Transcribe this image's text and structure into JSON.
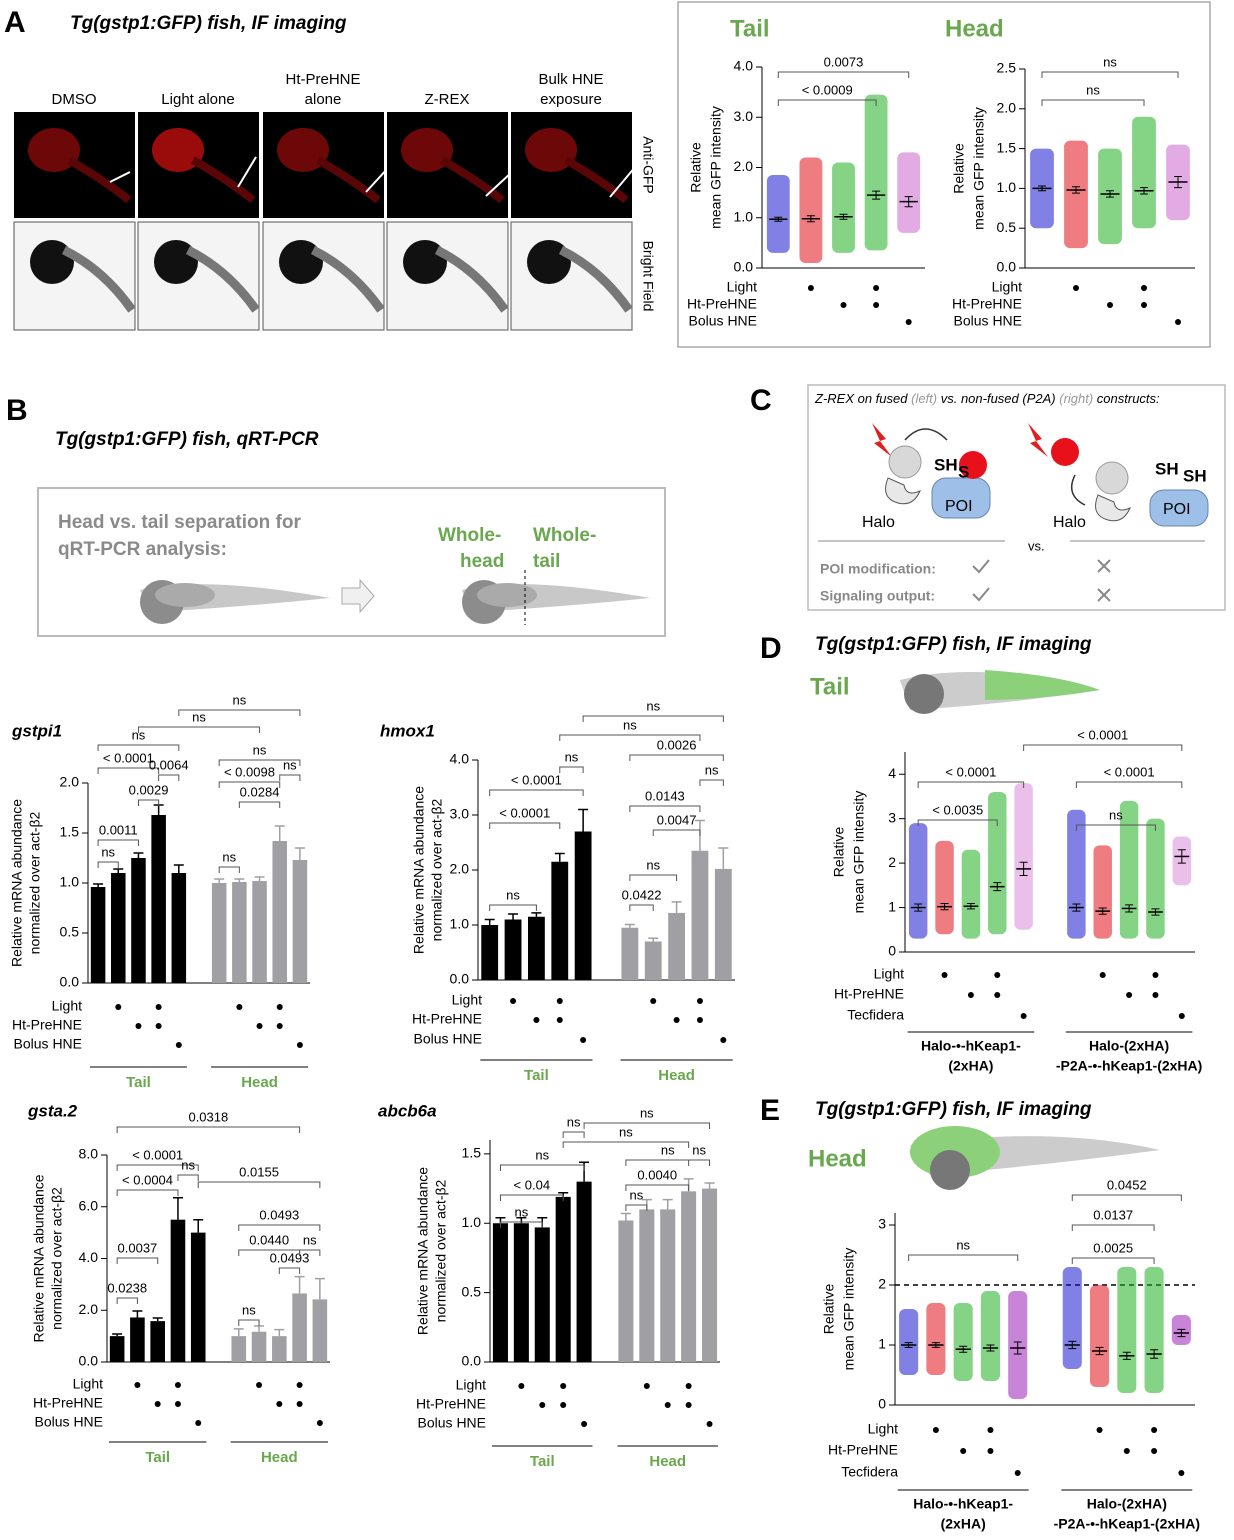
{
  "panels": {
    "A": {
      "label": "A",
      "title": "Tg(gstp1:GFP) fish, IF imaging",
      "columns": [
        [
          "DMSO"
        ],
        [
          "Light alone"
        ],
        [
          "Ht-PreHNE",
          "alone"
        ],
        [
          "Z-REX"
        ],
        [
          "Bulk HNE",
          "exposure"
        ]
      ],
      "rows": [
        "Anti-GFP",
        "Bright Field"
      ]
    },
    "B": {
      "label": "B",
      "title": "Tg(gstp1:GFP) fish, qRT-PCR",
      "heading": [
        "Head vs. tail separation for",
        "qRT-PCR analysis:"
      ],
      "head": [
        "Whole-",
        "head"
      ],
      "tail": [
        "Whole-",
        "tail"
      ]
    },
    "C": {
      "label": "C",
      "caption": [
        "Z-REX on fused ",
        "(left)",
        " vs. non-fused (P2A) ",
        "(right)",
        " constructs:"
      ],
      "sh": "SH",
      "s": "S",
      "halo": "Halo",
      "poi": "POI",
      "vs": "vs.",
      "sh2": [
        "SH",
        "SH"
      ],
      "rows": [
        "POI modification:",
        "Signaling output:"
      ]
    },
    "D": {
      "label": "D",
      "title": "Tg(gstp1:GFP) fish, IF imaging",
      "region": "Tail"
    },
    "E": {
      "label": "E",
      "title": "Tg(gstp1:GFP) fish, IF imaging",
      "region": "Head"
    }
  },
  "chart_data": [
    {
      "type": "dotplot",
      "title": "Tail",
      "ylabel": [
        "Relative",
        "mean GFP intensity"
      ],
      "ylim": [
        0,
        4
      ],
      "yticks": [
        {
          "value": 0,
          "label": "0.0"
        },
        {
          "value": 1,
          "label": "1.0"
        },
        {
          "value": 2,
          "label": "2.0"
        },
        {
          "value": 3,
          "label": "3.0"
        },
        {
          "value": 4,
          "label": "4.0"
        }
      ],
      "values": [
        0.97,
        0.98,
        1.02,
        1.45,
        1.32
      ],
      "errors": [
        0.04,
        0.06,
        0.05,
        0.08,
        0.1
      ],
      "ranges": [
        [
          0.3,
          1.85
        ],
        [
          0.1,
          2.2
        ],
        [
          0.3,
          2.1
        ],
        [
          0.35,
          3.45
        ],
        [
          0.7,
          2.3
        ]
      ],
      "colors": [
        "#1a1ad0",
        "#e0101a",
        "#21b021",
        "#21b021",
        "#cc66cc"
      ],
      "conditions": [
        {
          "name": "Light",
          "marks": [
            false,
            true,
            false,
            true,
            false
          ]
        },
        {
          "name": "Ht-PreHNE",
          "marks": [
            false,
            false,
            true,
            true,
            false
          ]
        },
        {
          "name": "Bolus HNE",
          "marks": [
            false,
            false,
            false,
            false,
            true
          ]
        }
      ],
      "annotations": [
        "< 0.0009",
        "0.0073"
      ]
    },
    {
      "type": "dotplot",
      "title": "Head",
      "ylabel": [
        "Relative",
        "mean GFP intensity"
      ],
      "ylim": [
        0,
        2.5
      ],
      "yticks": [
        {
          "value": 0,
          "label": "0.0"
        },
        {
          "value": 0.5,
          "label": "0.5"
        },
        {
          "value": 1,
          "label": "1.0"
        },
        {
          "value": 1.5,
          "label": "1.5"
        },
        {
          "value": 2,
          "label": "2.0"
        },
        {
          "value": 2.5,
          "label": "2.5"
        }
      ],
      "values": [
        1.0,
        0.98,
        0.93,
        0.97,
        1.08
      ],
      "errors": [
        0.03,
        0.04,
        0.04,
        0.04,
        0.07
      ],
      "ranges": [
        [
          0.5,
          1.5
        ],
        [
          0.25,
          1.6
        ],
        [
          0.3,
          1.5
        ],
        [
          0.5,
          1.9
        ],
        [
          0.6,
          1.55
        ]
      ],
      "colors": [
        "#1a1ad0",
        "#e0101a",
        "#21b021",
        "#21b021",
        "#cc66cc"
      ],
      "conditions": [
        {
          "name": "Light",
          "marks": [
            false,
            true,
            false,
            true,
            false
          ]
        },
        {
          "name": "Ht-PreHNE",
          "marks": [
            false,
            false,
            true,
            true,
            false
          ]
        },
        {
          "name": "Bolus HNE",
          "marks": [
            false,
            false,
            false,
            false,
            true
          ]
        }
      ],
      "annotations": [
        "ns",
        "ns"
      ]
    },
    {
      "type": "bar",
      "title": "gstpi1",
      "ylabel": [
        "Relative mRNA abundance",
        "normalized over act-β2"
      ],
      "ylim": [
        0,
        2
      ],
      "yticks": [
        {
          "value": 0,
          "label": "0.0"
        },
        {
          "value": 0.5,
          "label": "0.5"
        },
        {
          "value": 1,
          "label": "1.0"
        },
        {
          "value": 1.5,
          "label": "1.5"
        },
        {
          "value": 2,
          "label": "2.0"
        }
      ],
      "values": [
        0.96,
        1.1,
        1.25,
        1.68,
        1.1,
        1.0,
        1.01,
        1.02,
        1.42,
        1.23
      ],
      "errors": [
        0.03,
        0.04,
        0.05,
        0.1,
        0.08,
        0.04,
        0.03,
        0.04,
        0.15,
        0.12
      ],
      "colors": [
        "#000000",
        "#000000",
        "#000000",
        "#000000",
        "#000000",
        "#a0a0a4",
        "#a0a0a4",
        "#a0a0a4",
        "#a0a0a4",
        "#a0a0a4"
      ],
      "conditions": [
        {
          "name": "Light",
          "marks": [
            false,
            true,
            false,
            true,
            false,
            false,
            true,
            false,
            true,
            false
          ]
        },
        {
          "name": "Ht-PreHNE",
          "marks": [
            false,
            false,
            true,
            true,
            false,
            false,
            false,
            true,
            true,
            false
          ]
        },
        {
          "name": "Bolus HNE",
          "marks": [
            false,
            false,
            false,
            false,
            true,
            false,
            false,
            false,
            false,
            true
          ]
        }
      ],
      "groups": [
        {
          "label": [
            "Tail"
          ]
        },
        {
          "label": [
            "Head"
          ]
        }
      ],
      "annotations": [
        "ns",
        "0.0011",
        "0.0029",
        "< 0.0001",
        "0.0064",
        "ns",
        "ns",
        "ns",
        "ns",
        "< 0.0098",
        "0.0284",
        "ns",
        "ns"
      ]
    },
    {
      "type": "bar",
      "title": "hmox1",
      "ylabel": [
        "Relative mRNA abundance",
        "normalized over act-β2"
      ],
      "ylim": [
        0,
        4
      ],
      "yticks": [
        {
          "value": 0,
          "label": "0.0"
        },
        {
          "value": 1,
          "label": "1.0"
        },
        {
          "value": 2,
          "label": "2.0"
        },
        {
          "value": 3,
          "label": "3.0"
        },
        {
          "value": 4,
          "label": "4.0"
        }
      ],
      "values": [
        1.0,
        1.1,
        1.15,
        2.15,
        2.7,
        0.95,
        0.7,
        1.22,
        2.35,
        2.02
      ],
      "errors": [
        0.1,
        0.1,
        0.07,
        0.15,
        0.4,
        0.06,
        0.06,
        0.2,
        0.55,
        0.38
      ],
      "colors": [
        "#000000",
        "#000000",
        "#000000",
        "#000000",
        "#000000",
        "#a0a0a4",
        "#a0a0a4",
        "#a0a0a4",
        "#a0a0a4",
        "#a0a0a4"
      ],
      "conditions": [
        {
          "name": "Light",
          "marks": [
            false,
            true,
            false,
            true,
            false,
            false,
            true,
            false,
            true,
            false
          ]
        },
        {
          "name": "Ht-PreHNE",
          "marks": [
            false,
            false,
            true,
            true,
            false,
            false,
            false,
            true,
            true,
            false
          ]
        },
        {
          "name": "Bolus HNE",
          "marks": [
            false,
            false,
            false,
            false,
            true,
            false,
            false,
            false,
            false,
            true
          ]
        }
      ],
      "groups": [
        {
          "label": [
            "Tail"
          ]
        },
        {
          "label": [
            "Head"
          ]
        }
      ],
      "annotations": [
        "ns",
        "< 0.0001",
        "< 0.0001",
        "ns",
        "0.0422",
        "ns",
        "0.0047",
        "0.0143",
        "ns",
        "0.0026",
        "ns",
        "ns"
      ]
    },
    {
      "type": "bar",
      "title": "gsta.2",
      "ylabel": [
        "Relative mRNA abundance",
        "normalized over act-β2"
      ],
      "ylim": [
        0,
        8
      ],
      "yticks": [
        {
          "value": 0,
          "label": "0.0"
        },
        {
          "value": 2,
          "label": "2.0"
        },
        {
          "value": 4,
          "label": "4.0"
        },
        {
          "value": 6,
          "label": "6.0"
        },
        {
          "value": 8,
          "label": "8.0"
        }
      ],
      "values": [
        1.0,
        1.72,
        1.58,
        5.5,
        5.0,
        1.0,
        1.17,
        1.0,
        2.65,
        2.42
      ],
      "errors": [
        0.08,
        0.25,
        0.12,
        0.85,
        0.5,
        0.28,
        0.22,
        0.25,
        0.65,
        0.8
      ],
      "colors": [
        "#000000",
        "#000000",
        "#000000",
        "#000000",
        "#000000",
        "#a0a0a4",
        "#a0a0a4",
        "#a0a0a4",
        "#a0a0a4",
        "#a0a0a4"
      ],
      "conditions": [
        {
          "name": "Light",
          "marks": [
            false,
            true,
            false,
            true,
            false,
            false,
            true,
            false,
            true,
            false
          ]
        },
        {
          "name": "Ht-PreHNE",
          "marks": [
            false,
            false,
            true,
            true,
            false,
            false,
            false,
            true,
            true,
            false
          ]
        },
        {
          "name": "Bolus HNE",
          "marks": [
            false,
            false,
            false,
            false,
            true,
            false,
            false,
            false,
            false,
            true
          ]
        }
      ],
      "groups": [
        {
          "label": [
            "Tail"
          ]
        },
        {
          "label": [
            "Head"
          ]
        }
      ],
      "annotations": [
        "0.0238",
        "0.0037",
        "< 0.0004",
        "< 0.0001",
        "ns",
        "0.0155",
        "0.0318",
        "ns",
        "0.0493",
        "0.0440",
        "ns",
        "0.0493"
      ]
    },
    {
      "type": "bar",
      "title": "abcb6a",
      "ylabel": [
        "Relative mRNA abundance",
        "normalized over act-β2"
      ],
      "ylim": [
        0,
        1.6
      ],
      "yticks": [
        {
          "value": 0,
          "label": "0.0"
        },
        {
          "value": 0.5,
          "label": "0.5"
        },
        {
          "value": 1,
          "label": "1.0"
        },
        {
          "value": 1.5,
          "label": "1.5"
        }
      ],
      "values": [
        1.0,
        1.0,
        0.97,
        1.19,
        1.3,
        1.02,
        1.1,
        1.1,
        1.23,
        1.25
      ],
      "errors": [
        0.04,
        0.04,
        0.07,
        0.03,
        0.14,
        0.05,
        0.07,
        0.07,
        0.09,
        0.04
      ],
      "colors": [
        "#000000",
        "#000000",
        "#000000",
        "#000000",
        "#000000",
        "#a0a0a4",
        "#a0a0a4",
        "#a0a0a4",
        "#a0a0a4",
        "#a0a0a4"
      ],
      "conditions": [
        {
          "name": "Light",
          "marks": [
            false,
            true,
            false,
            true,
            false,
            false,
            true,
            false,
            true,
            false
          ]
        },
        {
          "name": "Ht-PreHNE",
          "marks": [
            false,
            false,
            true,
            true,
            false,
            false,
            false,
            true,
            true,
            false
          ]
        },
        {
          "name": "Bolus HNE",
          "marks": [
            false,
            false,
            false,
            false,
            true,
            false,
            false,
            false,
            false,
            true
          ]
        }
      ],
      "groups": [
        {
          "label": [
            "Tail"
          ]
        },
        {
          "label": [
            "Head"
          ]
        }
      ],
      "annotations": [
        "ns",
        "< 0.04",
        "ns",
        "ns",
        "ns",
        "0.0040",
        "ns",
        "ns",
        "ns",
        "ns"
      ]
    },
    {
      "type": "dotplot",
      "ylabel": [
        "Relative",
        "mean GFP intensity"
      ],
      "ylim": [
        0,
        4.5
      ],
      "yticks": [
        0,
        1,
        2,
        3,
        4
      ],
      "values": [
        1.0,
        1.02,
        1.03,
        1.47,
        1.87,
        1.0,
        0.92,
        0.98,
        0.9,
        2.15
      ],
      "errors": [
        0.08,
        0.07,
        0.06,
        0.09,
        0.15,
        0.08,
        0.07,
        0.08,
        0.07,
        0.15
      ],
      "ranges": [
        [
          0.3,
          2.9
        ],
        [
          0.4,
          2.5
        ],
        [
          0.3,
          2.3
        ],
        [
          0.4,
          3.6
        ],
        [
          0.5,
          3.8
        ],
        [
          0.3,
          3.2
        ],
        [
          0.3,
          2.4
        ],
        [
          0.3,
          3.4
        ],
        [
          0.3,
          3.0
        ],
        [
          1.5,
          2.6
        ]
      ],
      "colors": [
        "#1a1ad0",
        "#e0101a",
        "#21b021",
        "#21b021",
        "#d98ad9",
        "#1a1ad0",
        "#e0101a",
        "#21b021",
        "#21b021",
        "#d98ad9"
      ],
      "conditions": [
        {
          "name": "Light",
          "marks": [
            false,
            true,
            false,
            true,
            false,
            false,
            true,
            false,
            true,
            false
          ]
        },
        {
          "name": "Ht-PreHNE",
          "marks": [
            false,
            false,
            true,
            true,
            false,
            false,
            false,
            true,
            true,
            false
          ]
        },
        {
          "name": "Tecfidera",
          "marks": [
            false,
            false,
            false,
            false,
            true,
            false,
            false,
            false,
            false,
            true
          ]
        }
      ],
      "groups": [
        {
          "label": [
            "Halo-•-hKeap1-",
            "(2xHA)"
          ]
        },
        {
          "label": [
            "Halo-(2xHA)",
            "-P2A-•-hKeap1-(2xHA)"
          ]
        }
      ],
      "annotations": [
        "< 0.0035",
        "< 0.0001",
        "< 0.0001",
        "< 0.0001",
        "ns"
      ]
    },
    {
      "type": "dotplot",
      "ylabel": [
        "Relative",
        "mean GFP intensity"
      ],
      "ylim": [
        0,
        3.2
      ],
      "yticks": [
        0,
        1,
        2,
        3
      ],
      "hline": 2,
      "values": [
        1.0,
        1.0,
        0.93,
        0.95,
        0.95,
        1.0,
        0.9,
        0.82,
        0.85,
        1.2
      ],
      "errors": [
        0.04,
        0.04,
        0.05,
        0.05,
        0.1,
        0.06,
        0.06,
        0.06,
        0.07,
        0.06
      ],
      "ranges": [
        [
          0.5,
          1.6
        ],
        [
          0.5,
          1.7
        ],
        [
          0.4,
          1.7
        ],
        [
          0.4,
          1.9
        ],
        [
          0.1,
          1.9
        ],
        [
          0.6,
          2.3
        ],
        [
          0.3,
          2.0
        ],
        [
          0.2,
          2.3
        ],
        [
          0.2,
          2.3
        ],
        [
          1.0,
          1.5
        ]
      ],
      "colors": [
        "#1a1ad0",
        "#e0101a",
        "#21b021",
        "#21b021",
        "#9b1fb5",
        "#1a1ad0",
        "#e0101a",
        "#21b021",
        "#21b021",
        "#9b1fb5"
      ],
      "conditions": [
        {
          "name": "Light",
          "marks": [
            false,
            true,
            false,
            true,
            false,
            false,
            true,
            false,
            true,
            false
          ]
        },
        {
          "name": "Ht-PreHNE",
          "marks": [
            false,
            false,
            true,
            true,
            false,
            false,
            false,
            true,
            true,
            false
          ]
        },
        {
          "name": "Tecfidera",
          "marks": [
            false,
            false,
            false,
            false,
            true,
            false,
            false,
            false,
            false,
            true
          ]
        }
      ],
      "groups": [
        {
          "label": [
            "Halo-•-hKeap1-",
            "(2xHA)"
          ]
        },
        {
          "label": [
            "Halo-(2xHA)",
            "-P2A-•-hKeap1-(2xHA)"
          ]
        }
      ],
      "annotations": [
        "ns",
        "0.0025",
        "0.0137",
        "0.0452"
      ]
    }
  ]
}
